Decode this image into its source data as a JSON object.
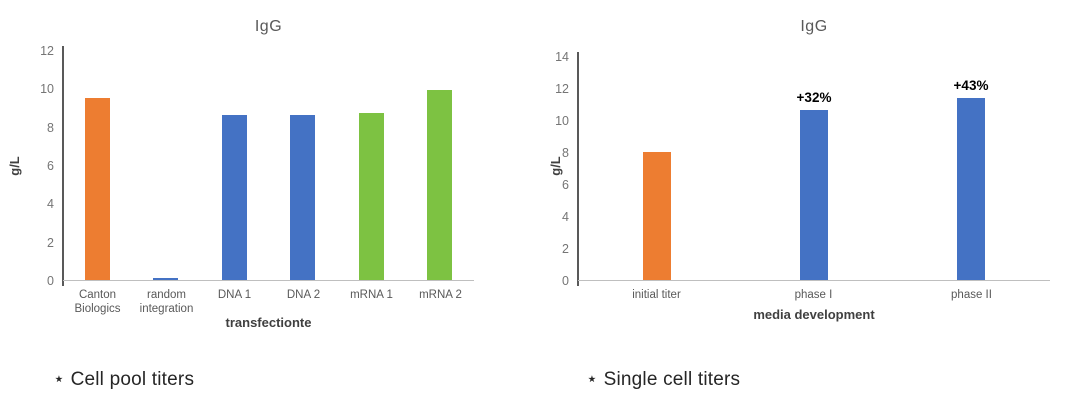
{
  "page": {
    "background": "#ffffff"
  },
  "colors": {
    "orange": "#ED7D31",
    "blue": "#4472C4",
    "green": "#7DC242",
    "y_axis_line": "#595959",
    "x_axis_line": "#BFBFBF",
    "tick_label": "#757575",
    "category_label": "#595959",
    "chart_title": "#595959",
    "axis_title": "#404040",
    "data_label": "#000000",
    "caption_text": "#262626"
  },
  "chart_data": [
    {
      "type": "bar",
      "title": "IgG",
      "ylabel": "g/L",
      "xlabel": "transfectionte",
      "ylim": [
        0,
        12
      ],
      "ytick_step": 2,
      "grid": false,
      "legend": "none",
      "categories": [
        "Canton\nBiologics",
        "random\nintegration",
        "DNA 1",
        "DNA 2",
        "mRNA 1",
        "mRNA 2"
      ],
      "values": [
        9.5,
        0.1,
        8.6,
        8.6,
        8.7,
        9.9
      ],
      "bar_colors": [
        "#ED7D31",
        "#4472C4",
        "#4472C4",
        "#4472C4",
        "#7DC242",
        "#7DC242"
      ],
      "bar_labels": [
        "",
        "",
        "",
        "",
        "",
        ""
      ],
      "caption": "⋆ Cell pool titers"
    },
    {
      "type": "bar",
      "title": "IgG",
      "ylabel": "g/L",
      "xlabel": "media development",
      "ylim": [
        0,
        14
      ],
      "ytick_step": 2,
      "grid": false,
      "legend": "none",
      "categories": [
        "initial titer",
        "phase I",
        "phase II"
      ],
      "values": [
        8,
        10.6,
        11.4
      ],
      "bar_colors": [
        "#ED7D31",
        "#4472C4",
        "#4472C4"
      ],
      "bar_labels": [
        "",
        "+32%",
        "+43%"
      ],
      "caption": "⋆ Single cell titers"
    }
  ]
}
